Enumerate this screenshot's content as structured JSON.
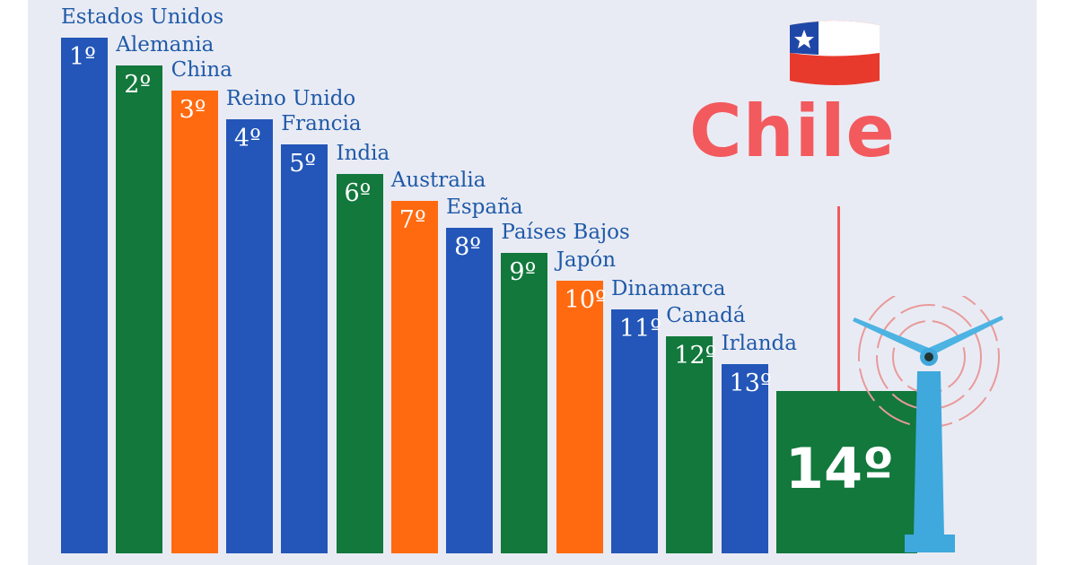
{
  "chart_data": {
    "type": "bar",
    "title": "Chile",
    "categories": [
      "Estados Unidos",
      "Alemania",
      "China",
      "Reino Unido",
      "Francia",
      "India",
      "Australia",
      "España",
      "Países Bajos",
      "Japón",
      "Dinamarca",
      "Canadá",
      "Irlanda",
      "Chile"
    ],
    "values": [
      1,
      2,
      3,
      4,
      5,
      6,
      7,
      8,
      9,
      10,
      11,
      12,
      13,
      14
    ],
    "rank_labels": [
      "1º",
      "2º",
      "3º",
      "4º",
      "5º",
      "6º",
      "7º",
      "8º",
      "9º",
      "10º",
      "11º",
      "12º",
      "13º",
      "14º"
    ],
    "bar_colors": [
      "#2356b8",
      "#12783c",
      "#ff6a10",
      "#2356b8",
      "#2356b8",
      "#12783c",
      "#ff6a10",
      "#2356b8",
      "#12783c",
      "#ff6a10",
      "#2356b8",
      "#12783c",
      "#2356b8",
      "#12783c"
    ],
    "highlight": "Chile",
    "legend": "none",
    "grid": false
  },
  "colors": {
    "background": "#e9ebf4",
    "label_text": "#1f5aa8",
    "title": "#f25a5e"
  },
  "icons": [
    "chile-flag-icon",
    "wind-turbine-icon"
  ]
}
